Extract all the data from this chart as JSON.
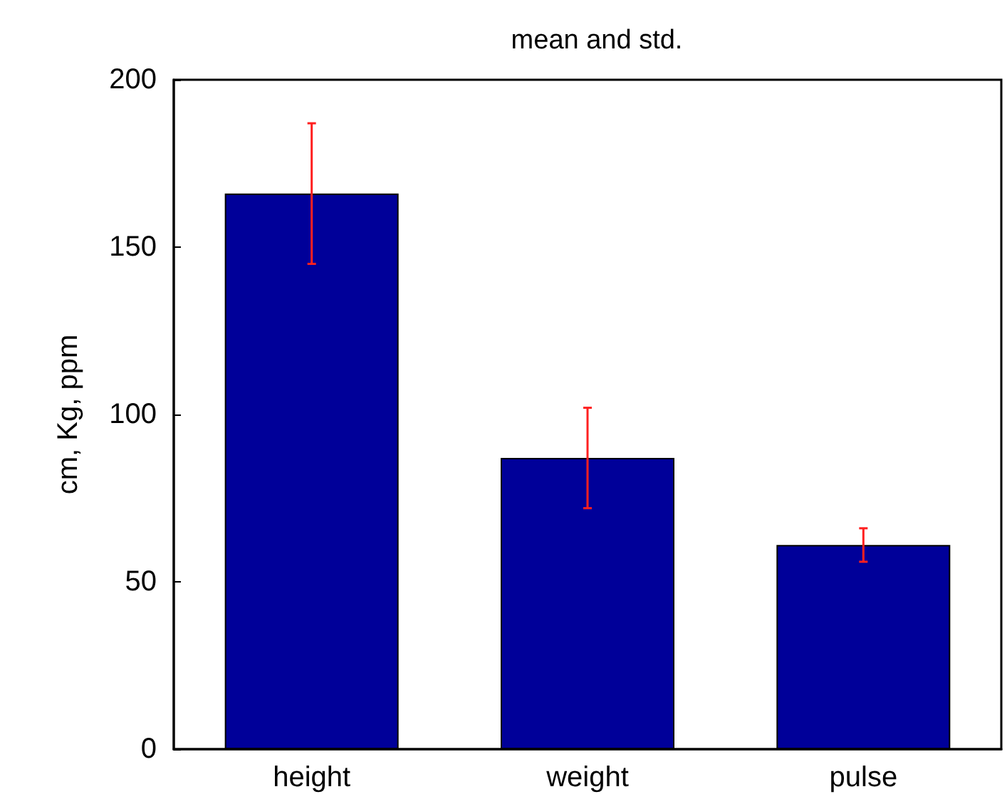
{
  "chart_data": {
    "type": "bar",
    "title": "mean and std.",
    "ylabel": "cm, Kg, ppm",
    "categories": [
      "height",
      "weight",
      "pulse"
    ],
    "values": [
      166,
      87,
      61
    ],
    "errors": [
      21,
      15,
      5
    ],
    "color": "#000099",
    "ylim": [
      0,
      200
    ],
    "yticks": [
      0,
      50,
      100,
      150,
      200
    ],
    "grid": false
  }
}
